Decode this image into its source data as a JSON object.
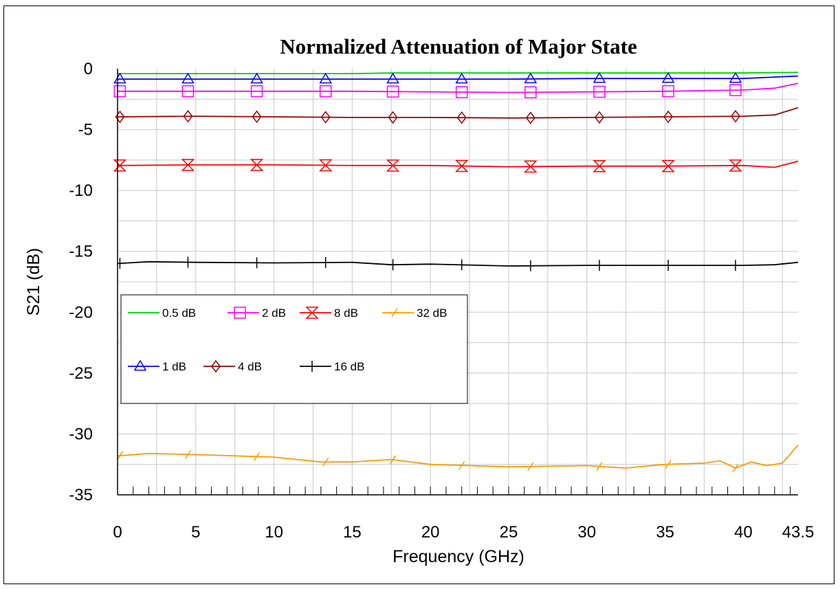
{
  "chart_data": {
    "type": "line",
    "title": "Normalized Attenuation of Major State",
    "xlabel": "Frequency (GHz)",
    "ylabel": "S21 (dB)",
    "xlim": [
      0,
      43.5
    ],
    "ylim": [
      -35,
      0
    ],
    "xticks": [
      0,
      5,
      10,
      15,
      20,
      25,
      30,
      35,
      40,
      43.5
    ],
    "xtick_labels": [
      "0",
      "5",
      "10",
      "15",
      "20",
      "25",
      "30",
      "35",
      "40",
      "43.5"
    ],
    "yticks": [
      0,
      -5,
      -10,
      -15,
      -20,
      -25,
      -30,
      -35
    ],
    "ytick_labels": [
      "0",
      "-5",
      "-10",
      "-15",
      "-20",
      "-25",
      "-30",
      "-35"
    ],
    "grid": true,
    "legend_position": "left",
    "marker_x": [
      0.15,
      4.5,
      8.9,
      13.3,
      17.6,
      22.0,
      26.4,
      30.8,
      35.2,
      39.5
    ],
    "series": [
      {
        "name": "0.5 dB",
        "color": "#00cc00",
        "marker": "none",
        "x": [
          0,
          5,
          10,
          15,
          17.5,
          20,
          25,
          30,
          35,
          40,
          43.5
        ],
        "y": [
          -0.4,
          -0.4,
          -0.4,
          -0.4,
          -0.35,
          -0.35,
          -0.35,
          -0.35,
          -0.35,
          -0.35,
          -0.3
        ]
      },
      {
        "name": "1 dB",
        "color": "#0000ff",
        "marker": "triangle",
        "x": [
          0,
          5,
          10,
          15,
          20,
          25,
          30,
          35,
          40,
          43.5
        ],
        "y": [
          -0.85,
          -0.85,
          -0.85,
          -0.85,
          -0.85,
          -0.85,
          -0.8,
          -0.8,
          -0.8,
          -0.6
        ]
      },
      {
        "name": "2 dB",
        "color": "#ff00ff",
        "marker": "square",
        "x": [
          0,
          5,
          10,
          15,
          20,
          25,
          30,
          35,
          40,
          42,
          43.5
        ],
        "y": [
          -1.85,
          -1.85,
          -1.85,
          -1.85,
          -1.9,
          -1.95,
          -1.9,
          -1.85,
          -1.75,
          -1.6,
          -1.2
        ]
      },
      {
        "name": "4 dB",
        "color": "#990000",
        "marker": "diamond",
        "x": [
          0,
          5,
          10,
          15,
          20,
          25,
          30,
          35,
          40,
          42,
          43.5
        ],
        "y": [
          -3.95,
          -3.9,
          -3.95,
          -4.0,
          -4.0,
          -4.05,
          -4.0,
          -3.95,
          -3.9,
          -3.8,
          -3.2
        ]
      },
      {
        "name": "8 dB",
        "color": "#ff0000",
        "marker": "hourglass",
        "x": [
          0,
          5,
          10,
          15,
          20,
          25,
          30,
          35,
          40,
          42,
          43.5
        ],
        "y": [
          -7.95,
          -7.9,
          -7.9,
          -7.95,
          -7.95,
          -8.05,
          -8.0,
          -8.0,
          -7.95,
          -8.1,
          -7.6
        ]
      },
      {
        "name": "16 dB",
        "color": "#000000",
        "marker": "plus",
        "x": [
          0,
          2,
          5,
          10,
          15,
          17.5,
          20,
          25,
          30,
          35,
          40,
          42,
          43.5
        ],
        "y": [
          -16.0,
          -15.85,
          -15.9,
          -15.95,
          -15.9,
          -16.1,
          -16.05,
          -16.2,
          -16.15,
          -16.15,
          -16.15,
          -16.1,
          -15.9
        ]
      },
      {
        "name": "32 dB",
        "color": "#ff9900",
        "marker": "slash",
        "x": [
          0,
          2,
          5,
          10,
          13,
          15,
          17.5,
          20,
          25,
          30,
          32.5,
          35,
          37.5,
          38.5,
          39.5,
          40.5,
          41.5,
          42.5,
          43.5
        ],
        "y": [
          -31.8,
          -31.6,
          -31.7,
          -31.9,
          -32.3,
          -32.3,
          -32.1,
          -32.5,
          -32.7,
          -32.6,
          -32.8,
          -32.5,
          -32.4,
          -32.2,
          -32.8,
          -32.3,
          -32.6,
          -32.4,
          -30.9
        ]
      }
    ]
  }
}
